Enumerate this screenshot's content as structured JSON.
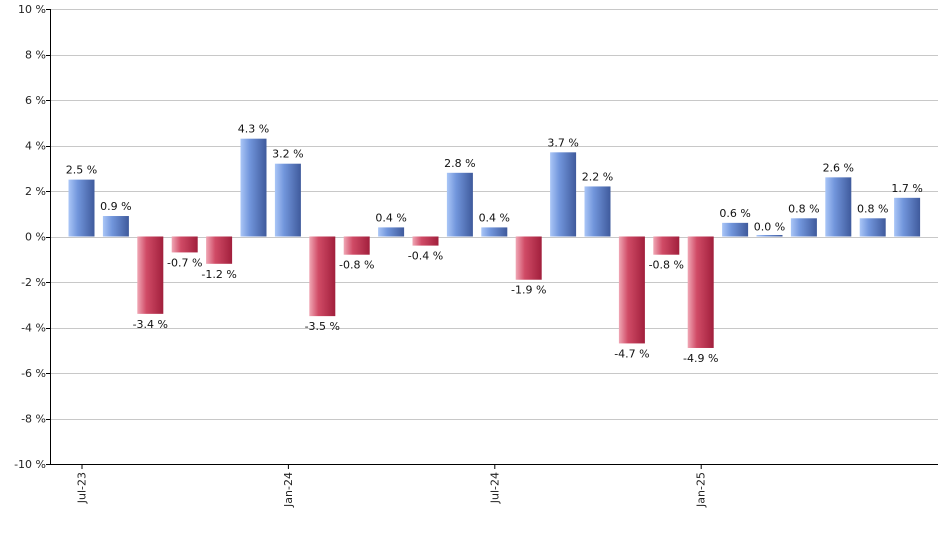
{
  "chart_data": {
    "type": "bar",
    "title": "",
    "xlabel": "",
    "ylabel": "",
    "ylim": [
      -10,
      10
    ],
    "yticks": [
      -10,
      -8,
      -6,
      -4,
      -2,
      0,
      2,
      4,
      6,
      8,
      10
    ],
    "ytick_labels": [
      "-10 %",
      "-8 %",
      "-6 %",
      "-4 %",
      "-2 %",
      "0 %",
      "2 %",
      "4 %",
      "6 %",
      "8 %",
      "10 %"
    ],
    "grid": true,
    "categories": [
      "2023-07",
      "2023-08",
      "2023-09",
      "2023-10",
      "2023-11",
      "2023-12",
      "2024-01",
      "2024-02",
      "2024-03",
      "2024-04",
      "2024-05",
      "2024-06",
      "2024-07",
      "2024-08",
      "2024-09",
      "2024-10",
      "2024-11",
      "2024-12",
      "2025-01",
      "2025-02",
      "2025-03",
      "2025-04",
      "2025-05",
      "2025-06",
      "2025-07"
    ],
    "values": [
      2.5,
      0.9,
      -3.4,
      -0.7,
      -1.2,
      4.3,
      3.2,
      -3.5,
      -0.8,
      0.4,
      -0.4,
      2.8,
      0.4,
      -1.9,
      3.7,
      2.2,
      -4.7,
      -0.8,
      -4.9,
      0.6,
      0.0,
      0.8,
      2.6,
      0.8,
      1.7
    ],
    "data_labels": [
      "2.5 %",
      "0.9 %",
      "-3.4 %",
      "-0.7 %",
      "-1.2 %",
      "4.3 %",
      "3.2 %",
      "-3.5 %",
      "-0.8 %",
      "0.4 %",
      "-0.4 %",
      "2.8 %",
      "0.4 %",
      "-1.9 %",
      "3.7 %",
      "2.2 %",
      "-4.7 %",
      "-0.8 %",
      "-4.9 %",
      "0.6 %",
      "0.0 %",
      "0.8 %",
      "2.6 %",
      "0.8 %",
      "1.7 %"
    ],
    "xtick_labels": [
      {
        "index": 0,
        "label": "Jul-23"
      },
      {
        "index": 6,
        "label": "Jan-24"
      },
      {
        "index": 12,
        "label": "Jul-24"
      },
      {
        "index": 18,
        "label": "Jan-25"
      }
    ],
    "colors": {
      "positive_light": "#aac6f7",
      "positive_mid": "#7296dc",
      "positive_dark": "#3f5a9c",
      "negative_light": "#f0a7b5",
      "negative_mid": "#d04b66",
      "negative_dark": "#a11f3c",
      "grid": "#c8c8c8",
      "axis": "#000000"
    }
  }
}
